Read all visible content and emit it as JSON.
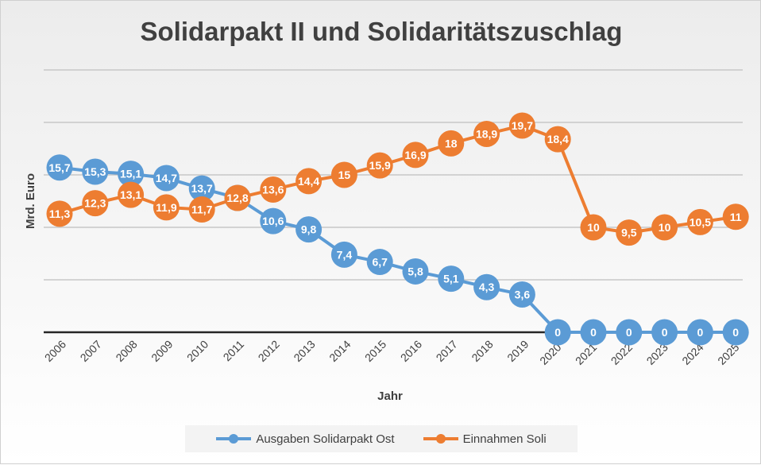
{
  "chart_data": {
    "type": "line",
    "title": "Solidarpakt II und Solidaritätszuschlag",
    "xlabel": "Jahr",
    "ylabel": "Mrd. Euro",
    "ylim": [
      0,
      25
    ],
    "grid": true,
    "legend_position": "bottom",
    "categories": [
      "2006",
      "2007",
      "2008",
      "2009",
      "2010",
      "2011",
      "2012",
      "2013",
      "2014",
      "2015",
      "2016",
      "2017",
      "2018",
      "2019",
      "2020*",
      "2021*",
      "2022*",
      "2023*",
      "2024*",
      "2025*"
    ],
    "series": [
      {
        "name": "Ausgaben Solidarpakt Ost",
        "color": "#5b9bd5",
        "values": [
          15.7,
          15.3,
          15.1,
          14.7,
          13.7,
          12.8,
          10.6,
          9.8,
          7.4,
          6.7,
          5.8,
          5.1,
          4.3,
          3.6,
          0,
          0,
          0,
          0,
          0,
          0
        ],
        "labels": [
          "15,7",
          "15,3",
          "15,1",
          "14,7",
          "13,7",
          "12,8",
          "10,6",
          "9,8",
          "7,4",
          "6,7",
          "5,8",
          "5,1",
          "4,3",
          "3,6",
          "0",
          "0",
          "0",
          "0",
          "0",
          "0"
        ]
      },
      {
        "name": "Einnahmen Soli",
        "color": "#ed7d31",
        "values": [
          11.3,
          12.3,
          13.1,
          11.9,
          11.7,
          12.8,
          13.6,
          14.4,
          15,
          15.9,
          16.9,
          18,
          18.9,
          19.7,
          18.4,
          10,
          9.5,
          10,
          10.5,
          11
        ],
        "labels": [
          "11,3",
          "12,3",
          "13,1",
          "11,9",
          "11,7",
          "12,8",
          "13,6",
          "14,4",
          "15",
          "15,9",
          "16,9",
          "18",
          "18,9",
          "19,7",
          "18,4",
          "10",
          "9,5",
          "10",
          "10,5",
          "11"
        ]
      }
    ]
  }
}
